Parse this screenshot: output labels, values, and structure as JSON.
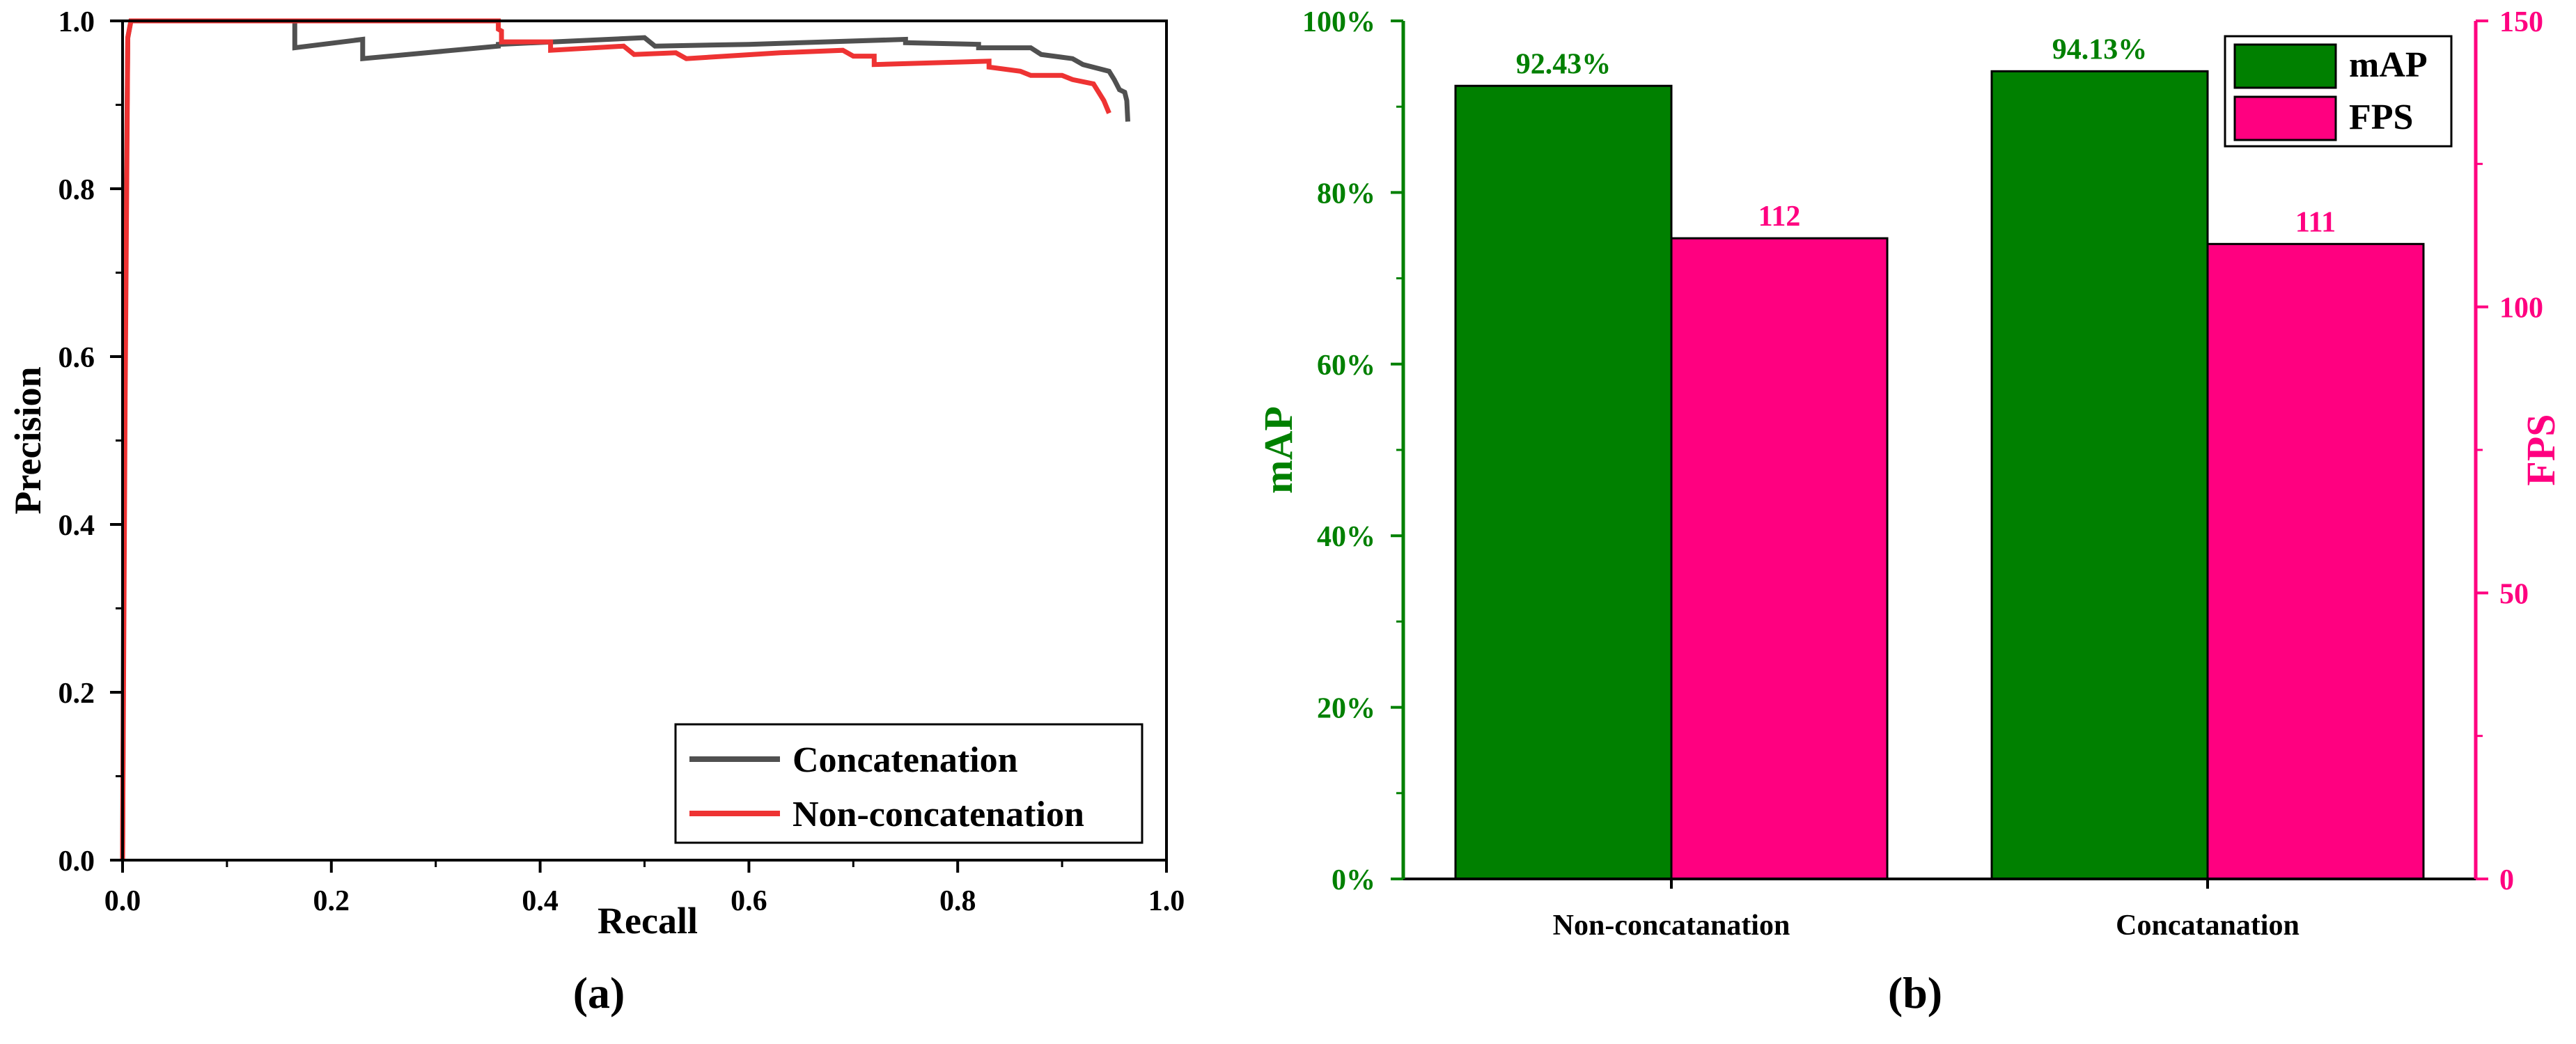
{
  "colors": {
    "black": "#000000",
    "axis_green": "#008000",
    "axis_pink": "#ff0080",
    "bar_green": "#008000",
    "bar_pink": "#ff0080",
    "curve_concat": "#505050",
    "curve_nonconcat": "#ee3333"
  },
  "panel_a": {
    "caption": "(a)"
  },
  "panel_b": {
    "caption": "(b)"
  },
  "chart_data": [
    {
      "type": "line",
      "title": "",
      "xlabel": "Recall",
      "ylabel": "Precision",
      "xlim": [
        0,
        1
      ],
      "ylim": [
        0,
        1
      ],
      "xticks": [
        "0.0",
        "0.2",
        "0.4",
        "0.6",
        "0.8",
        "1.0"
      ],
      "yticks": [
        "0.0",
        "0.2",
        "0.4",
        "0.6",
        "0.8",
        "1.0"
      ],
      "grid": false,
      "legend_position": "bottom-right",
      "series": [
        {
          "name": "Concatenation",
          "color": "#505050",
          "points": [
            [
              0.0,
              0.0
            ],
            [
              0.002,
              0.6
            ],
            [
              0.005,
              0.98
            ],
            [
              0.008,
              1.0
            ],
            [
              0.165,
              1.0
            ],
            [
              0.165,
              0.968
            ],
            [
              0.23,
              0.978
            ],
            [
              0.23,
              0.955
            ],
            [
              0.36,
              0.97
            ],
            [
              0.36,
              0.972
            ],
            [
              0.5,
              0.98
            ],
            [
              0.51,
              0.97
            ],
            [
              0.6,
              0.972
            ],
            [
              0.75,
              0.978
            ],
            [
              0.75,
              0.974
            ],
            [
              0.82,
              0.972
            ],
            [
              0.82,
              0.968
            ],
            [
              0.87,
              0.968
            ],
            [
              0.88,
              0.96
            ],
            [
              0.91,
              0.955
            ],
            [
              0.92,
              0.948
            ],
            [
              0.945,
              0.94
            ],
            [
              0.95,
              0.93
            ],
            [
              0.955,
              0.918
            ],
            [
              0.96,
              0.915
            ],
            [
              0.962,
              0.905
            ],
            [
              0.963,
              0.88
            ]
          ]
        },
        {
          "name": "Non-concatenation",
          "color": "#ee3333",
          "points": [
            [
              0.0,
              0.0
            ],
            [
              0.0025,
              0.55
            ],
            [
              0.005,
              0.98
            ],
            [
              0.008,
              1.0
            ],
            [
              0.36,
              1.0
            ],
            [
              0.36,
              0.99
            ],
            [
              0.363,
              0.988
            ],
            [
              0.363,
              0.975
            ],
            [
              0.41,
              0.975
            ],
            [
              0.41,
              0.965
            ],
            [
              0.48,
              0.97
            ],
            [
              0.49,
              0.96
            ],
            [
              0.53,
              0.962
            ],
            [
              0.54,
              0.955
            ],
            [
              0.63,
              0.962
            ],
            [
              0.69,
              0.965
            ],
            [
              0.7,
              0.958
            ],
            [
              0.72,
              0.958
            ],
            [
              0.72,
              0.948
            ],
            [
              0.83,
              0.952
            ],
            [
              0.83,
              0.945
            ],
            [
              0.86,
              0.94
            ],
            [
              0.87,
              0.935
            ],
            [
              0.9,
              0.935
            ],
            [
              0.91,
              0.93
            ],
            [
              0.93,
              0.925
            ],
            [
              0.935,
              0.915
            ],
            [
              0.94,
              0.905
            ],
            [
              0.945,
              0.89
            ]
          ]
        }
      ]
    },
    {
      "type": "bar",
      "title": "",
      "xlabel": "",
      "ylabel": "mAP",
      "ylabel_right": "FPS",
      "categories": [
        "Non-concatanation",
        "Concatanation"
      ],
      "ylim": [
        0,
        100
      ],
      "ylim_right": [
        0,
        150
      ],
      "yticks_left": [
        "0%",
        "20%",
        "40%",
        "60%",
        "80%",
        "100%"
      ],
      "yticks_right": [
        "0",
        "50",
        "100",
        "150"
      ],
      "grid": false,
      "legend_position": "top-right",
      "series": [
        {
          "name": "mAP",
          "axis": "left",
          "color": "#008000",
          "values": [
            92.43,
            94.13
          ],
          "labels": [
            "92.43%",
            "94.13%"
          ]
        },
        {
          "name": "FPS",
          "axis": "right",
          "color": "#ff0080",
          "values": [
            112,
            111
          ],
          "labels": [
            "112",
            "111"
          ]
        }
      ]
    }
  ]
}
